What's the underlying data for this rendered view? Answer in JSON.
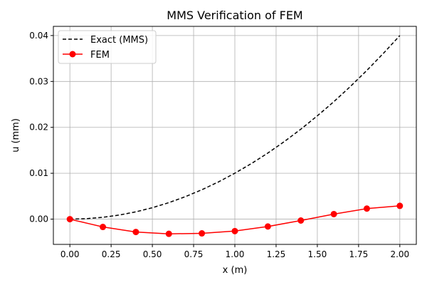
{
  "chart_data": {
    "type": "line",
    "title": "MMS Verification of FEM",
    "xlabel": "x (m)",
    "ylabel": "u (mm)",
    "xlim": [
      -0.1,
      2.1
    ],
    "ylim": [
      -0.0055,
      0.042
    ],
    "xticks": [
      0.0,
      0.25,
      0.5,
      0.75,
      1.0,
      1.25,
      1.5,
      1.75,
      2.0
    ],
    "xtick_labels": [
      "0.00",
      "0.25",
      "0.50",
      "0.75",
      "1.00",
      "1.25",
      "1.50",
      "1.75",
      "2.00"
    ],
    "yticks": [
      0.0,
      0.01,
      0.02,
      0.03,
      0.04
    ],
    "ytick_labels": [
      "0.00",
      "0.01",
      "0.02",
      "0.03",
      "0.04"
    ],
    "grid": true,
    "legend_position": "top-left",
    "series": [
      {
        "name": "Exact (MMS)",
        "style": "dashed",
        "color": "#000000",
        "marker": "none",
        "x": [
          0.0,
          0.1,
          0.2,
          0.3,
          0.4,
          0.5,
          0.6,
          0.7,
          0.8,
          0.9,
          1.0,
          1.1,
          1.2,
          1.3,
          1.4,
          1.5,
          1.6,
          1.7,
          1.8,
          1.9,
          2.0
        ],
        "y": [
          0.0,
          0.0001,
          0.0004,
          0.0009,
          0.0016,
          0.0025,
          0.0036,
          0.0049,
          0.0064,
          0.0081,
          0.01,
          0.0121,
          0.0144,
          0.0169,
          0.0196,
          0.0225,
          0.0256,
          0.0289,
          0.0324,
          0.0361,
          0.04
        ]
      },
      {
        "name": "FEM",
        "style": "solid",
        "color": "#ff0000",
        "marker": "circle",
        "x": [
          0.0,
          0.2,
          0.4,
          0.6,
          0.8,
          1.0,
          1.2,
          1.4,
          1.6,
          1.8,
          2.0
        ],
        "y": [
          0.0,
          -0.0017,
          -0.0028,
          -0.0032,
          -0.0031,
          -0.0026,
          -0.0016,
          -0.0003,
          0.0011,
          0.0023,
          0.0029
        ]
      }
    ]
  }
}
